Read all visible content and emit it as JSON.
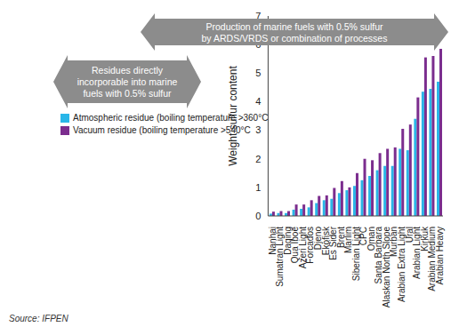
{
  "chart_data": {
    "type": "bar",
    "y_label": "Weight sulfur content",
    "source": "Source: IFPEN",
    "categories": [
      "Nanhai",
      "Sumatran Light",
      "Daqing",
      "Qua Iboe",
      "Azeri Light",
      "Forcados",
      "Djeno",
      "Ekofisk",
      "Es Sider",
      "Brent",
      "Marlim",
      "Siberian Light",
      "CPC",
      "Oman",
      "Santa Barbara",
      "Alaskan North Slope",
      "Murban",
      "Arabian Extra Light",
      "Ural",
      "Arabian Light",
      "Kirkuk",
      "Arabian Medium",
      "Arabian Heavy"
    ],
    "series": [
      {
        "name": "Atmospheric residue (boiling temperature >360°C",
        "color": "#29b6e8",
        "values": [
          0.08,
          0.1,
          0.1,
          0.22,
          0.25,
          0.3,
          0.45,
          0.55,
          0.6,
          0.8,
          0.9,
          1.05,
          1.25,
          1.4,
          1.6,
          1.75,
          1.75,
          2.35,
          2.3,
          3.4,
          4.35,
          4.45,
          4.7
        ]
      },
      {
        "name": "Vacuum residue (boiling temperature >540°C",
        "color": "#7b2d8e",
        "values": [
          0.15,
          0.17,
          0.17,
          0.4,
          0.4,
          0.55,
          0.7,
          0.72,
          0.98,
          1.22,
          1.0,
          1.5,
          2.0,
          1.95,
          2.2,
          2.35,
          2.4,
          3.05,
          3.2,
          4.15,
          5.55,
          5.6,
          5.85
        ]
      }
    ],
    "ylim": [
      0,
      7
    ],
    "yticks": [
      0,
      1,
      2,
      3,
      4,
      5,
      6,
      7
    ],
    "grid": false,
    "legend": "upper left",
    "annotations": [
      {
        "lines": [
          "Residues directly",
          "incorporable into marine",
          "fuels with 0.5% sulfur"
        ]
      },
      {
        "lines": [
          "Production of marine fuels with 0.5% sulfur",
          "by ARDS/VRDS or combination of processes"
        ]
      }
    ]
  }
}
